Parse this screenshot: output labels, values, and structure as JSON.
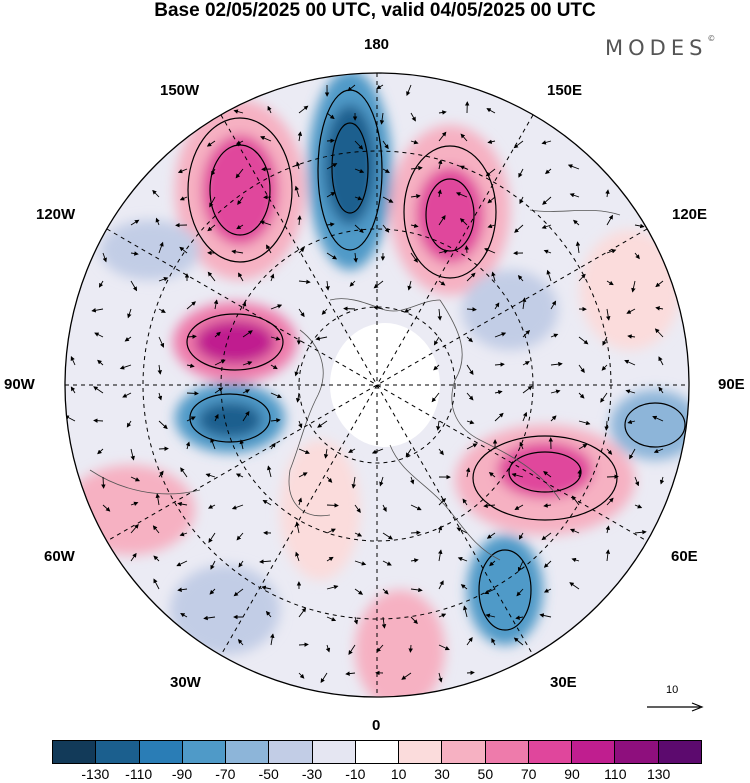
{
  "title": "Base 02/05/2025 00 UTC, valid 04/05/2025 00 UTC",
  "brand": "MODES",
  "brand_mark": "©",
  "map_labels": {
    "lon_180": "180",
    "lon_150w": "150W",
    "lon_150e": "150E",
    "lon_120w": "120W",
    "lon_120e": "120E",
    "lon_90w": "90W",
    "lon_90e": "90E",
    "lon_60w": "60W",
    "lon_60e": "60E",
    "lon_30w": "30W",
    "lon_30e": "30E",
    "lon_0": "0"
  },
  "vector_reference": "10",
  "colorbar": {
    "colors": [
      "#123a59",
      "#1b5f8e",
      "#2a7db6",
      "#4f9ac8",
      "#8db5d9",
      "#c2cde6",
      "#e5e6f2",
      "#ffffff",
      "#fbdcdc",
      "#f6b1c2",
      "#ee7bab",
      "#e0469c",
      "#c01e8f",
      "#8e0f7d",
      "#5c0a6e"
    ],
    "tick_labels": [
      "-130",
      "-110",
      "-90",
      "-70",
      "-50",
      "-30",
      "-10",
      "10",
      "30",
      "50",
      "70",
      "90",
      "110",
      "130"
    ]
  }
}
